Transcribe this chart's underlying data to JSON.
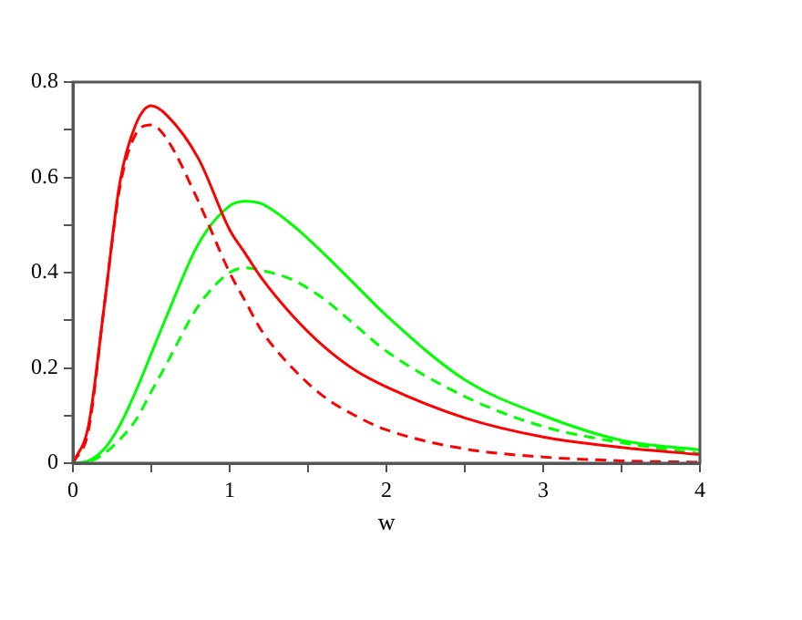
{
  "chart_data": {
    "type": "line",
    "xlabel": "w",
    "x": [
      0,
      0.1,
      0.2,
      0.3,
      0.4,
      0.5,
      0.6,
      0.8,
      1.0,
      1.1,
      1.2,
      1.4,
      1.6,
      1.8,
      2.0,
      2.5,
      3.0,
      3.5,
      4.0
    ],
    "series": [
      {
        "color": "#ff0000",
        "line_style": "solid",
        "values": [
          0,
          0.08,
          0.33,
          0.59,
          0.71,
          0.75,
          0.73,
          0.64,
          0.49,
          0.44,
          0.39,
          0.31,
          0.245,
          0.195,
          0.16,
          0.095,
          0.055,
          0.033,
          0.018
        ]
      },
      {
        "color": "#ff0000",
        "line_style": "dashed",
        "values": [
          0,
          0.07,
          0.33,
          0.58,
          0.69,
          0.71,
          0.68,
          0.55,
          0.4,
          0.34,
          0.28,
          0.2,
          0.14,
          0.1,
          0.07,
          0.03,
          0.013,
          0.005,
          0.002
        ]
      },
      {
        "color": "#00ff00",
        "line_style": "solid",
        "values": [
          0,
          0.005,
          0.03,
          0.08,
          0.15,
          0.23,
          0.31,
          0.46,
          0.54,
          0.55,
          0.545,
          0.5,
          0.44,
          0.375,
          0.31,
          0.175,
          0.1,
          0.048,
          0.028
        ]
      },
      {
        "color": "#00ff00",
        "line_style": "dashed",
        "values": [
          0,
          0.003,
          0.02,
          0.05,
          0.09,
          0.15,
          0.21,
          0.33,
          0.4,
          0.41,
          0.405,
          0.385,
          0.345,
          0.29,
          0.235,
          0.14,
          0.077,
          0.043,
          0.02
        ]
      }
    ],
    "xlim": [
      0,
      4
    ],
    "xticks": [
      0,
      {
        "value": 0.5,
        "label": null
      },
      1,
      {
        "value": 1.5,
        "label": null
      },
      2,
      {
        "value": 2.5,
        "label": null
      },
      3,
      {
        "value": 3.5,
        "label": null
      },
      4
    ],
    "ylim": [
      0,
      0.8
    ],
    "yticks": [
      0,
      {
        "value": 0.1,
        "label": null
      },
      0.2,
      {
        "value": 0.3,
        "label": null
      },
      0.4,
      {
        "value": 0.5,
        "label": null
      },
      0.6,
      {
        "value": 0.7,
        "label": null
      },
      0.8
    ],
    "grid": false,
    "legend": false,
    "marker": "none"
  }
}
